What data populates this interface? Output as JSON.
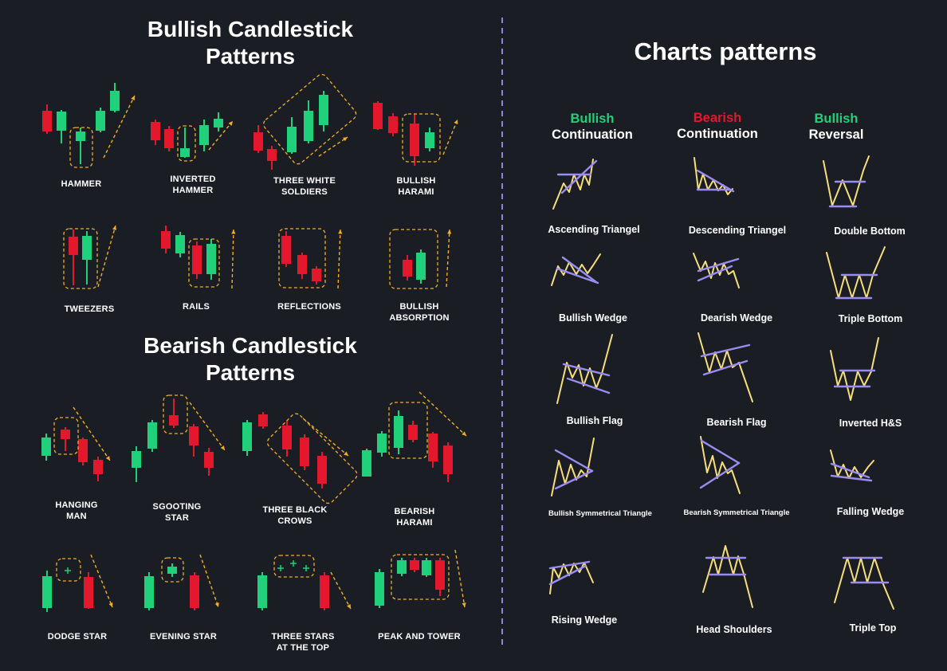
{
  "colors": {
    "background": "#1b1d24",
    "bull": "#21d07a",
    "bear": "#e3182d",
    "accent_dashed": "#f2b01e",
    "chart_line": "#f6de78",
    "chart_trend": "#9a8cf0",
    "divider": "#8e83e8"
  },
  "left": {
    "bullish_title": "Bullish Candlestick\nPatterns",
    "bearish_title": "Bearish Candlestick\nPatterns",
    "bullish_patterns": [
      {
        "label": "HAMMER"
      },
      {
        "label": "INVERTED\nHAMMER"
      },
      {
        "label": "THREE WHITE\nSOLDIERS"
      },
      {
        "label": "BULLISH\nHARAMI"
      },
      {
        "label": "TWEEZERS"
      },
      {
        "label": "RAILS"
      },
      {
        "label": "REFLECTIONS"
      },
      {
        "label": "BULLISH\nABSORPTION"
      }
    ],
    "bearish_patterns": [
      {
        "label": "HANGING\nMAN"
      },
      {
        "label": "SGOOTING\nSTAR"
      },
      {
        "label": "THREE BLACK\nCROWS"
      },
      {
        "label": "BEARISH\nHARAMI"
      },
      {
        "label": "DODGE STAR"
      },
      {
        "label": "EVENING STAR"
      },
      {
        "label": "THREE STARS\nAT THE TOP"
      },
      {
        "label": "PEAK AND TOWER"
      }
    ]
  },
  "right": {
    "title": "Charts patterns",
    "columns": [
      {
        "tag": "Bullish",
        "name": "Continuation",
        "tag_color": "#21d07a"
      },
      {
        "tag": "Bearish",
        "name": "Continuation",
        "tag_color": "#e3182d"
      },
      {
        "tag": "Bullish",
        "name": "Reversal",
        "tag_color": "#21d07a"
      }
    ],
    "patterns": [
      [
        "Ascending Triangel",
        "Bullish Wedge",
        "Bullish Flag",
        "Bullish Symmetrical Triangle",
        "Rising Wedge"
      ],
      [
        "Descending Triangel",
        "Dearish Wedge",
        "Bearish Flag",
        "Bearish Symmetrical Triangle",
        "Head Shoulders"
      ],
      [
        "Double Bottom",
        "Triple Bottom",
        "Inverted H&S",
        "Falling Wedge",
        "Triple Top"
      ]
    ]
  }
}
